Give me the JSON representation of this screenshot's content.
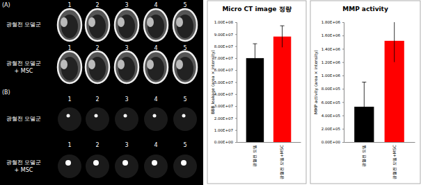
{
  "chart_data": [
    {
      "type": "bar",
      "title": "Micro CT image 정량",
      "y_label": "BBB leakage (area × intensity)",
      "categories": [
        "광혈전 모델",
        "광혈전 모델+MSC"
      ],
      "values": [
        70000000,
        88000000
      ],
      "errors": [
        12000000,
        9000000
      ],
      "colors": [
        "#000000",
        "#ff0000"
      ],
      "ylim": [
        0,
        100000000
      ],
      "yticks": [
        {
          "value": 0,
          "label": "0.00E+00"
        },
        {
          "value": 10000000,
          "label": "1.00E+07"
        },
        {
          "value": 20000000,
          "label": "2.00E+07"
        },
        {
          "value": 30000000,
          "label": "3.00E+07"
        },
        {
          "value": 40000000,
          "label": "4.00E+07"
        },
        {
          "value": 50000000,
          "label": "5.00E+07"
        },
        {
          "value": 60000000,
          "label": "6.00E+07"
        },
        {
          "value": 70000000,
          "label": "7.00E+07"
        },
        {
          "value": 80000000,
          "label": "8.00E+07"
        },
        {
          "value": 90000000,
          "label": "9.00E+07"
        },
        {
          "value": 100000000,
          "label": "1.00E+08"
        }
      ],
      "grid": false
    },
    {
      "type": "bar",
      "title": "MMP activity",
      "y_label": "MMP activity (area × intensity)",
      "categories": [
        "광혈전 모델",
        "광혈전 모델+MSC"
      ],
      "values": [
        530000,
        1520000
      ],
      "errors": [
        370000,
        320000
      ],
      "colors": [
        "#000000",
        "#ff0000"
      ],
      "ylim": [
        0,
        1800000
      ],
      "yticks": [
        {
          "value": 0,
          "label": "0.00E+00"
        },
        {
          "value": 200000,
          "label": "2.00E+05"
        },
        {
          "value": 400000,
          "label": "4.00E+05"
        },
        {
          "value": 600000,
          "label": "6.00E+05"
        },
        {
          "value": 800000,
          "label": "8.00E+05"
        },
        {
          "value": 1000000,
          "label": "1.00E+06"
        },
        {
          "value": 1200000,
          "label": "1.20E+06"
        },
        {
          "value": 1400000,
          "label": "1.40E+06"
        },
        {
          "value": 1600000,
          "label": "1.60E+06"
        },
        {
          "value": 1800000,
          "label": "1.80E+06"
        }
      ],
      "grid": false
    }
  ],
  "image_panel": {
    "panel_labels": [
      "(A)",
      "(B)"
    ],
    "sample_numbers": [
      "1",
      "2",
      "3",
      "4",
      "5"
    ],
    "row_labels": [
      [
        "광혈전 모델군"
      ],
      [
        "광혈전 모델군",
        "+ MSC"
      ]
    ]
  }
}
